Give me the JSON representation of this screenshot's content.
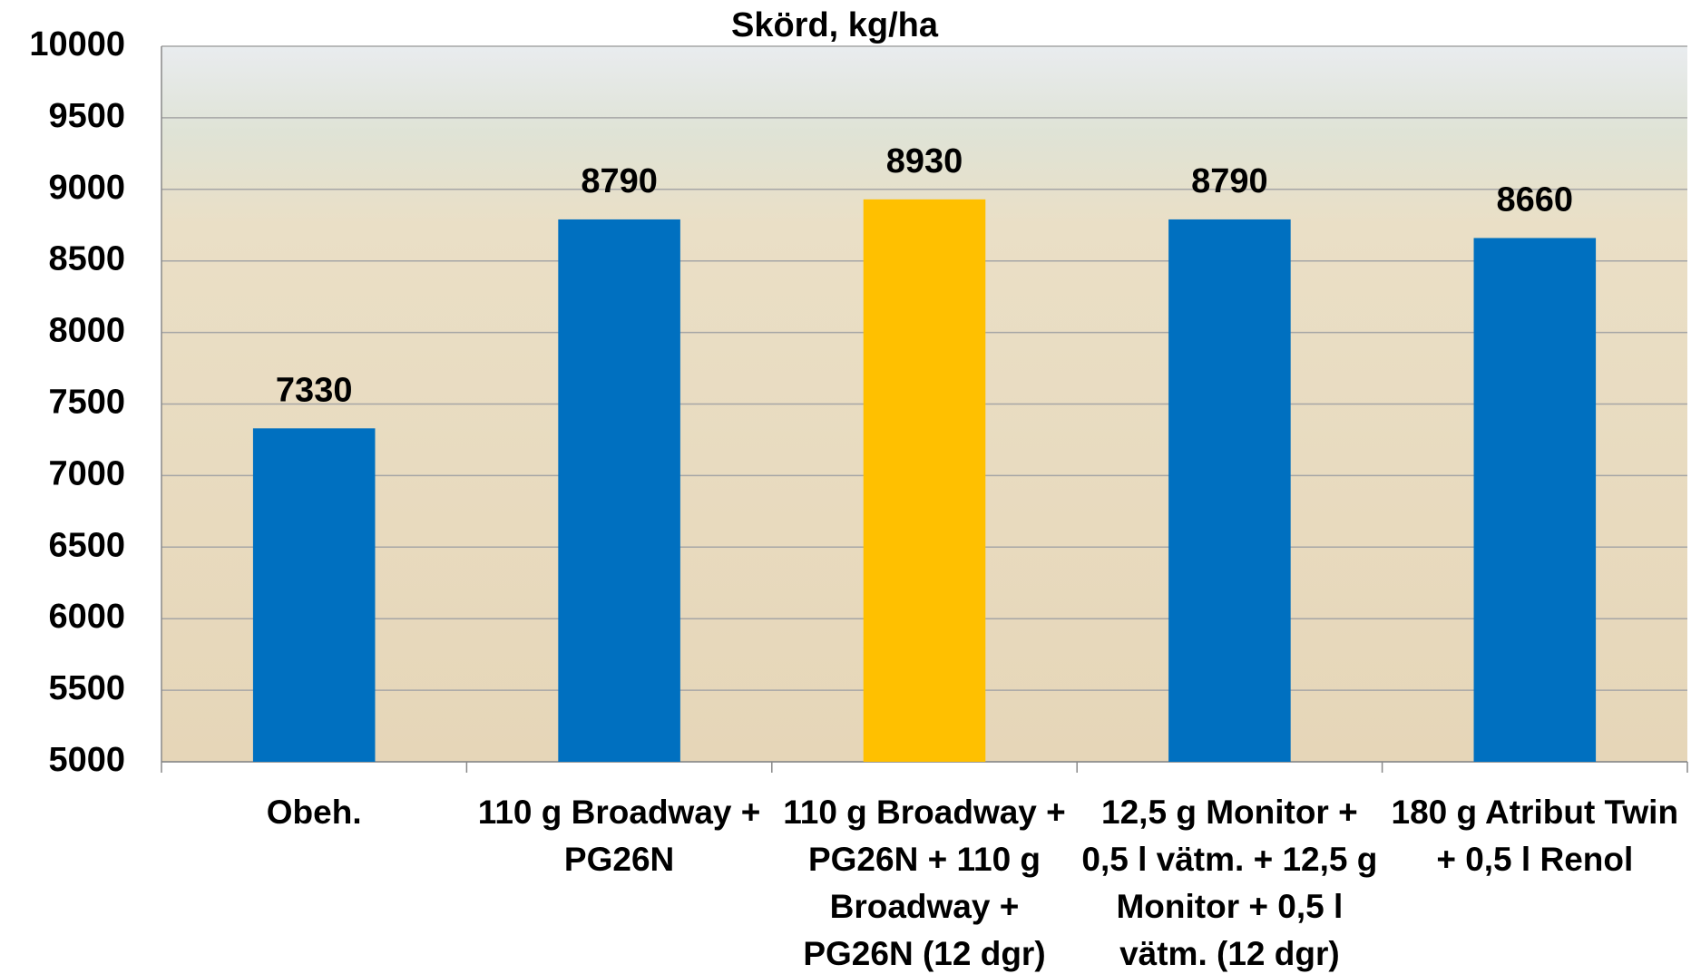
{
  "chart_data": {
    "type": "bar",
    "title": "Skörd, kg/ha",
    "categories": [
      "Obeh.",
      "110 g Broadway + PG26N",
      "110 g Broadway + PG26N +  110 g Broadway + PG26N (12 dgr)",
      "12,5 g Monitor + 0,5 l vätm. +  12,5 g Monitor + 0,5 l vätm. (12 dgr)",
      "180 g Atribut Twin + 0,5 l Renol"
    ],
    "values": [
      7330,
      8790,
      8930,
      8790,
      8660
    ],
    "colors": [
      "#0070c0",
      "#0070c0",
      "#ffc000",
      "#0070c0",
      "#0070c0"
    ],
    "ylim": [
      5000,
      10000
    ],
    "yticks": [
      5000,
      5500,
      6000,
      6500,
      7000,
      7500,
      8000,
      8500,
      9000,
      9500,
      10000
    ],
    "grid": true
  }
}
